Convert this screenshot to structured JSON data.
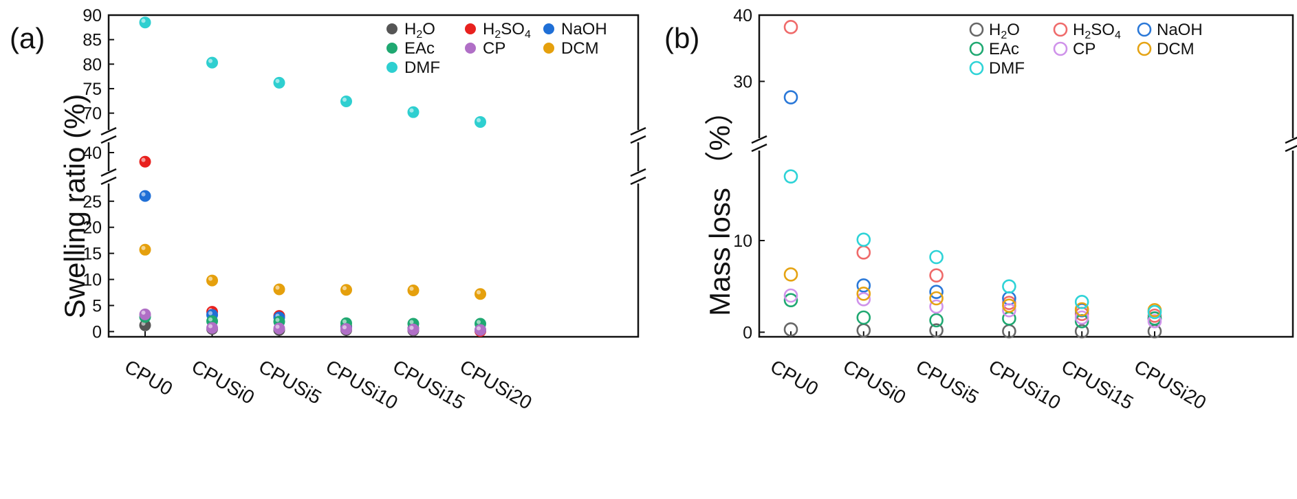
{
  "chart_data": [
    {
      "panel_label": "(a)",
      "type": "scatter",
      "marker_style": "filled",
      "ylabel": "Swelling ratio (%)",
      "xlabel": "",
      "categories": [
        "CPU0",
        "CPUSi0",
        "CPUSi5",
        "CPUSi10",
        "CPUSi15",
        "CPUSi20"
      ],
      "y_axis_segments": [
        {
          "ylim": [
            -1,
            28
          ],
          "ticks": [
            "0",
            "5",
            "10",
            "15",
            "20",
            "25"
          ]
        },
        {
          "ylim": [
            38,
            41
          ],
          "ticks": [
            "40"
          ]
        },
        {
          "ylim": [
            67,
            90
          ],
          "ticks": [
            "70",
            "75",
            "80",
            "85",
            "90"
          ]
        }
      ],
      "legend_position": "top-right",
      "series": [
        {
          "name": "H2O",
          "color": "#555555",
          "values": [
            1.2,
            0.5,
            0.3,
            0.3,
            0.2,
            0.2
          ]
        },
        {
          "name": "H2SO4",
          "color": "#e8211e",
          "values": [
            38.9,
            3.8,
            3.0,
            1.0,
            0.6,
            0.1
          ]
        },
        {
          "name": "NaOH",
          "color": "#1f6fd6",
          "values": [
            26.0,
            3.2,
            2.7,
            0.8,
            0.5,
            0.3
          ]
        },
        {
          "name": "EAc",
          "color": "#1fa871",
          "values": [
            2.8,
            2.0,
            1.9,
            1.6,
            1.5,
            1.5
          ]
        },
        {
          "name": "CP",
          "color": "#b06fc6",
          "values": [
            3.3,
            0.7,
            0.6,
            0.5,
            0.4,
            0.3
          ]
        },
        {
          "name": "DCM",
          "color": "#e5a00d",
          "values": [
            15.7,
            9.8,
            8.1,
            8.0,
            7.9,
            7.2
          ]
        },
        {
          "name": "DMF",
          "color": "#2ecfd0",
          "values": [
            88.5,
            80.3,
            76.2,
            72.4,
            70.2,
            68.2
          ]
        }
      ]
    },
    {
      "panel_label": "(b)",
      "type": "scatter",
      "marker_style": "hollow",
      "ylabel": "Mass loss （%）",
      "xlabel": "",
      "categories": [
        "CPU0",
        "CPUSi0",
        "CPUSi5",
        "CPUSi10",
        "CPUSi15",
        "CPUSi20"
      ],
      "y_axis_segments": [
        {
          "ylim": [
            -0.5,
            20.5
          ],
          "ticks": [
            "0",
            "10"
          ]
        },
        {
          "ylim": [
            20.5,
            40
          ],
          "ticks": [
            "30",
            "40"
          ]
        }
      ],
      "legend_position": "top-right",
      "series": [
        {
          "name": "H2O",
          "color": "#666666",
          "values": [
            0.3,
            0.2,
            0.2,
            0.1,
            0.1,
            0.1
          ]
        },
        {
          "name": "H2SO4",
          "color": "#ef6a6a",
          "values": [
            38.2,
            8.7,
            6.2,
            3.2,
            2.0,
            1.8
          ]
        },
        {
          "name": "NaOH",
          "color": "#2a78d8",
          "values": [
            27.6,
            5.1,
            4.4,
            3.7,
            2.4,
            1.5
          ]
        },
        {
          "name": "EAc",
          "color": "#1fa871",
          "values": [
            3.5,
            1.6,
            1.3,
            1.5,
            1.2,
            1.5
          ]
        },
        {
          "name": "CP",
          "color": "#cf92ea",
          "values": [
            4.0,
            3.6,
            2.8,
            2.4,
            1.6,
            1.2
          ]
        },
        {
          "name": "DCM",
          "color": "#e5a313",
          "values": [
            6.3,
            4.2,
            3.7,
            2.9,
            2.5,
            2.4
          ]
        },
        {
          "name": "DMF",
          "color": "#2ed3d7",
          "values": [
            17.0,
            10.1,
            8.2,
            5.0,
            3.3,
            2.2
          ]
        }
      ]
    }
  ]
}
